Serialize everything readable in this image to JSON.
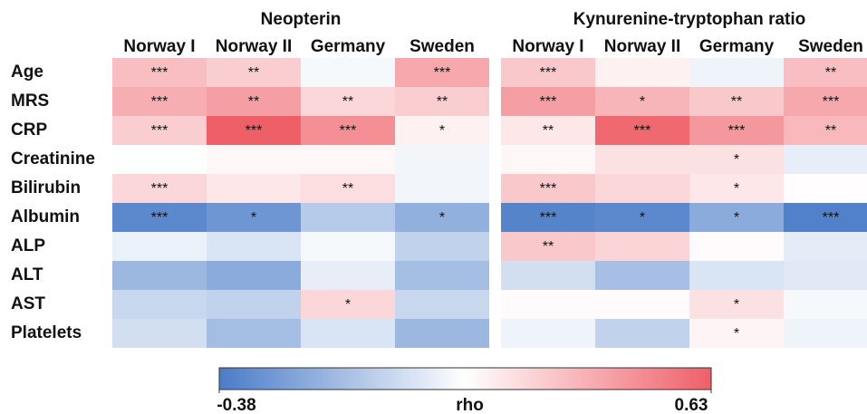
{
  "chart_data": [
    {
      "type": "heatmap",
      "title": "Neopterin",
      "columns": [
        "Norway I",
        "Norway II",
        "Germany",
        "Sweden"
      ],
      "rows": [
        "Age",
        "MRS",
        "CRP",
        "Creatinine",
        "Bilirubin",
        "Albumin",
        "ALP",
        "ALT",
        "AST",
        "Platelets"
      ],
      "values": [
        [
          0.33,
          0.28,
          0.1,
          0.4
        ],
        [
          0.38,
          0.43,
          0.25,
          0.28
        ],
        [
          0.28,
          0.63,
          0.48,
          0.17
        ],
        [
          0.12,
          0.15,
          0.15,
          0.09
        ],
        [
          0.25,
          0.2,
          0.23,
          0.09
        ],
        [
          -0.33,
          -0.28,
          -0.08,
          -0.18
        ],
        [
          0.07,
          0.02,
          0.1,
          -0.05
        ],
        [
          -0.15,
          -0.2,
          0.06,
          -0.13
        ],
        [
          -0.03,
          -0.05,
          0.25,
          -0.03
        ],
        [
          0.0,
          -0.13,
          0.02,
          -0.15
        ]
      ],
      "value_labels": [
        [
          "***",
          "**",
          null,
          "***"
        ],
        [
          "***",
          "**",
          "**",
          "**"
        ],
        [
          "***",
          "***",
          "***",
          "*"
        ],
        [
          null,
          null,
          null,
          null
        ],
        [
          "***",
          null,
          "**",
          null
        ],
        [
          "***",
          "*",
          null,
          "*"
        ],
        [
          null,
          null,
          null,
          null
        ],
        [
          null,
          null,
          null,
          null
        ],
        [
          null,
          null,
          "*",
          null
        ],
        [
          null,
          null,
          null,
          null
        ]
      ],
      "zlim": [
        -0.38,
        0.63
      ],
      "zticks": [
        -0.38,
        0.63
      ],
      "zlabel": "rho",
      "colors": [
        "#4a7cc8",
        "#ffffff",
        "#ef5f68"
      ]
    },
    {
      "type": "heatmap",
      "title": "Kynurenine-tryptophan ratio",
      "columns": [
        "Norway I",
        "Norway II",
        "Germany",
        "Sweden"
      ],
      "values": [
        [
          0.3,
          0.17,
          0.08,
          0.33
        ],
        [
          0.43,
          0.36,
          0.3,
          0.4
        ],
        [
          0.2,
          0.6,
          0.45,
          0.35
        ],
        [
          0.15,
          0.22,
          0.22,
          0.06
        ],
        [
          0.3,
          0.25,
          0.2,
          0.13
        ],
        [
          -0.35,
          -0.33,
          -0.2,
          -0.36
        ],
        [
          0.3,
          0.26,
          0.14,
          0.05
        ],
        [
          0.0,
          -0.12,
          0.02,
          0.04
        ],
        [
          0.14,
          0.14,
          0.22,
          0.1
        ],
        [
          0.08,
          -0.05,
          0.16,
          0.08
        ]
      ],
      "value_labels": [
        [
          "***",
          null,
          null,
          "**"
        ],
        [
          "***",
          "*",
          "**",
          "***"
        ],
        [
          "**",
          "***",
          "***",
          "**"
        ],
        [
          null,
          null,
          "*",
          null
        ],
        [
          "***",
          null,
          "*",
          null
        ],
        [
          "***",
          "*",
          "*",
          "***"
        ],
        [
          "**",
          null,
          null,
          null
        ],
        [
          null,
          null,
          null,
          null
        ],
        [
          null,
          null,
          "*",
          null
        ],
        [
          null,
          null,
          "*",
          null
        ]
      ]
    }
  ]
}
